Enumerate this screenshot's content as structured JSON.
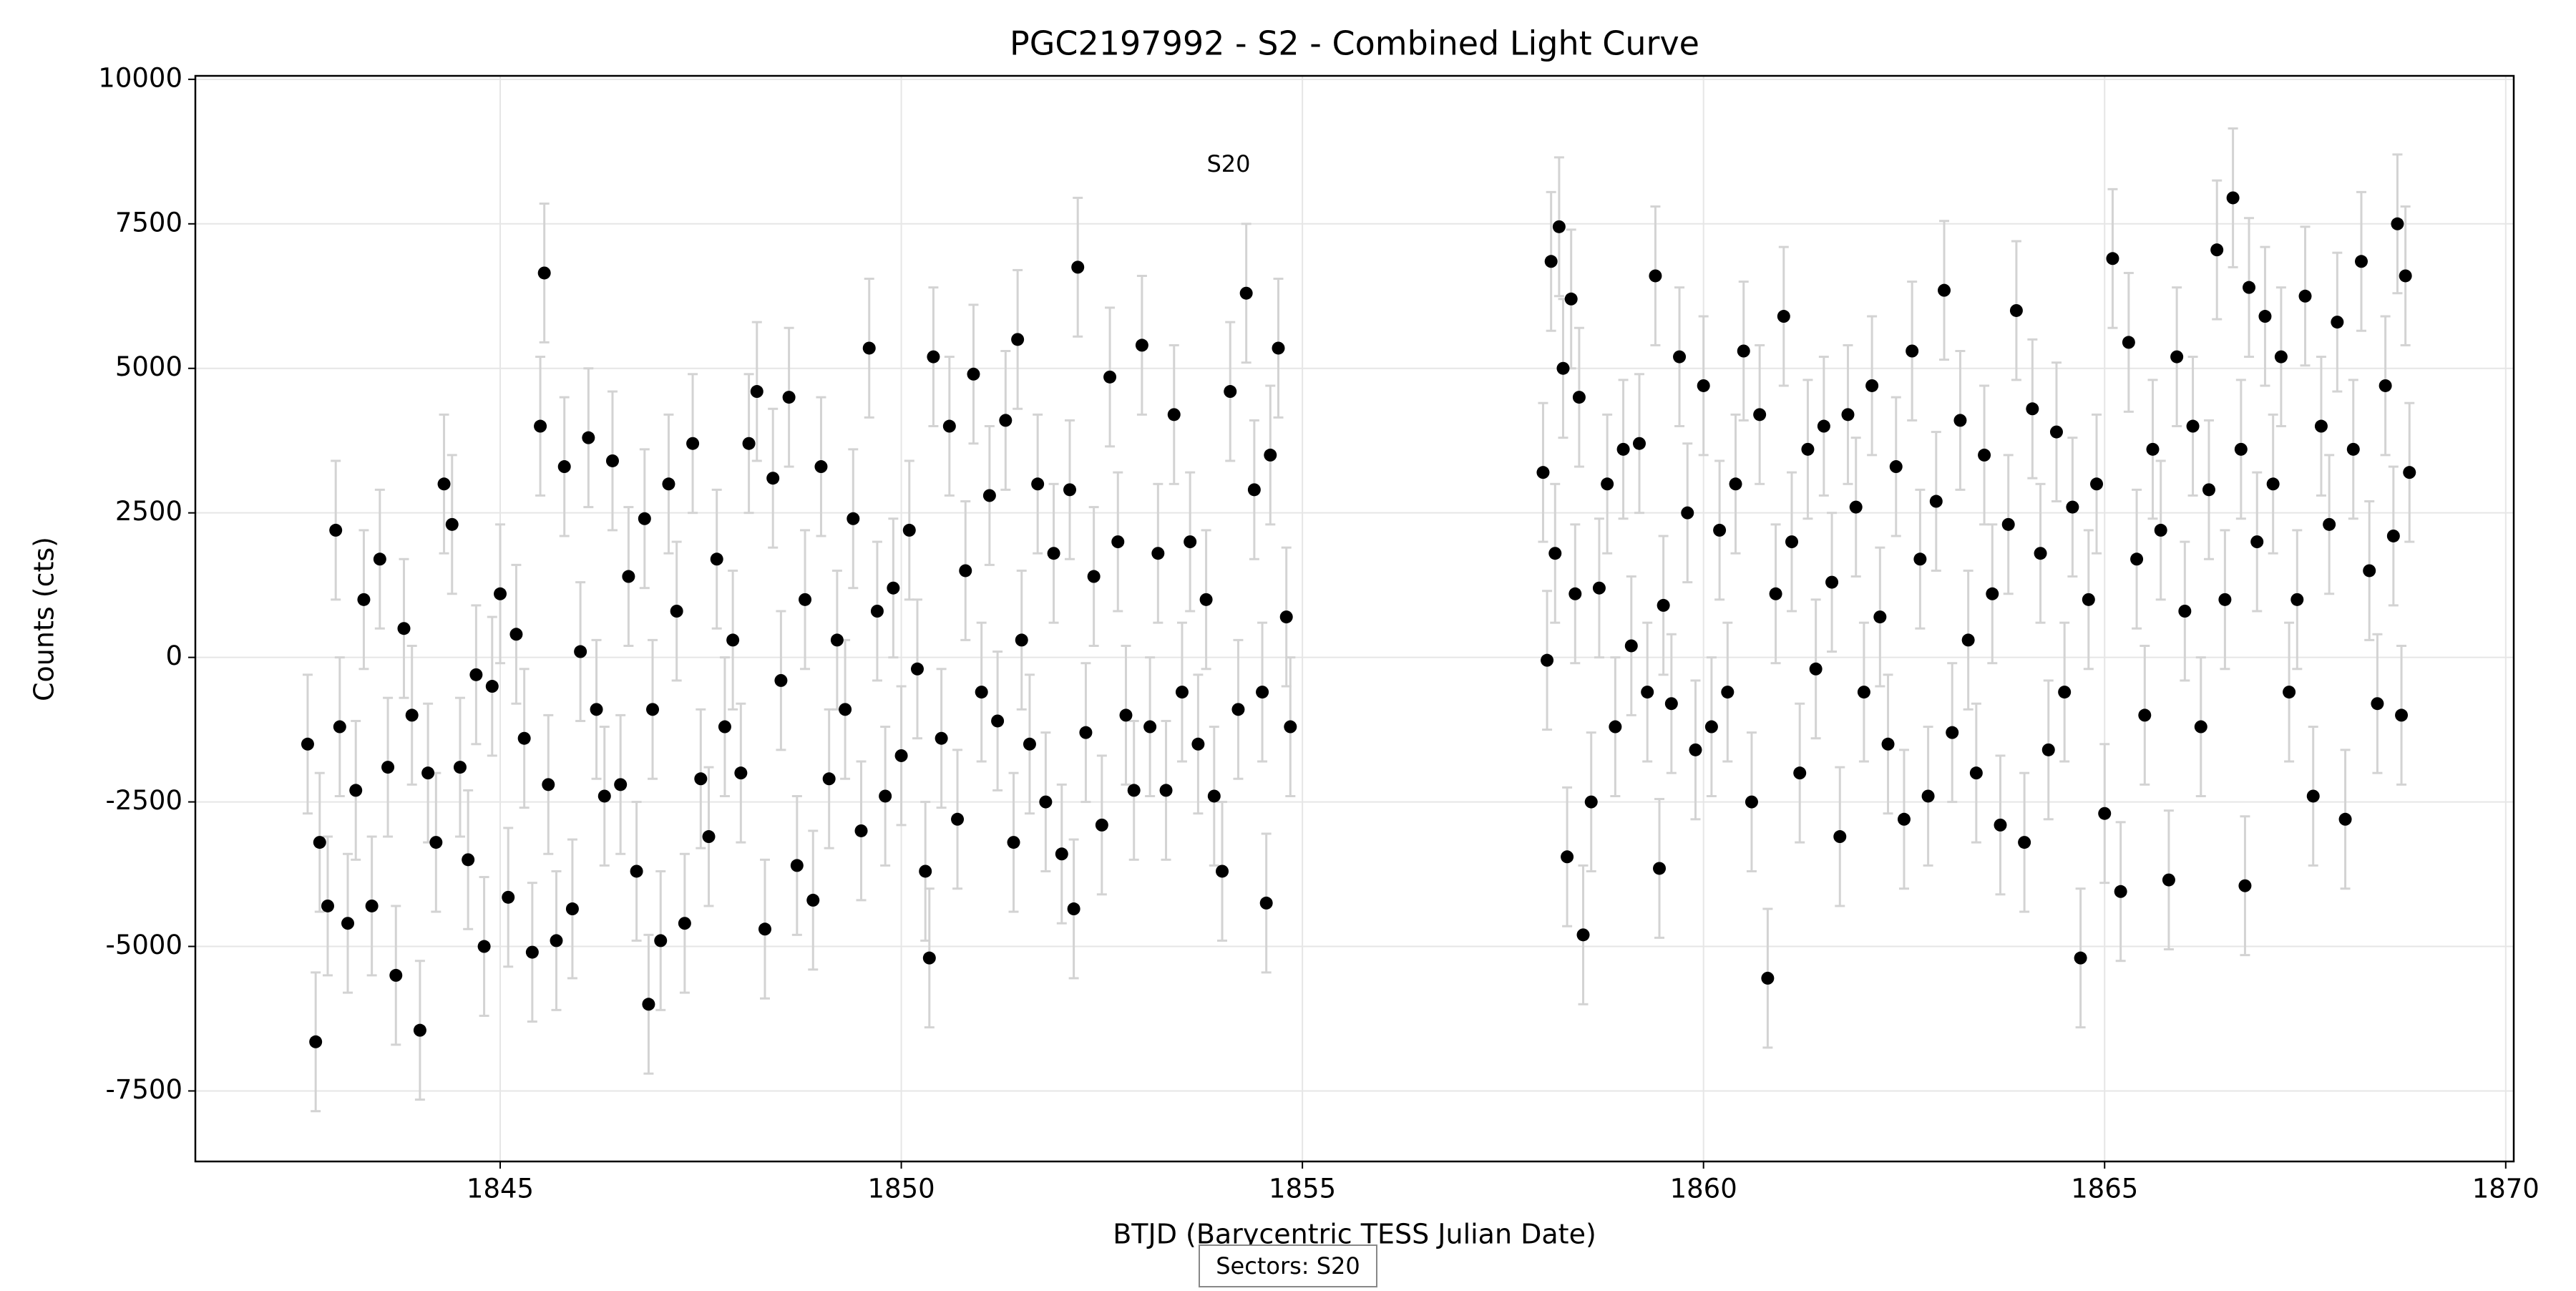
{
  "chart_data": {
    "type": "scatter",
    "title": "PGC2197992 - S2 - Combined Light Curve",
    "xlabel": "BTJD (Barycentric TESS Julian Date)",
    "ylabel": "Counts (cts)",
    "annotation": "S20",
    "footnote": "Sectors: S20",
    "grid": true,
    "xlim": [
      1841.2,
      1870.1
    ],
    "ylim": [
      -8720,
      10060
    ],
    "xticks": [
      1845,
      1850,
      1855,
      1860,
      1865,
      1870
    ],
    "yticks": [
      -7500,
      -5000,
      -2500,
      0,
      2500,
      5000,
      7500,
      10000
    ],
    "x": [
      1842.6,
      1842.7,
      1842.75,
      1842.85,
      1842.95,
      1843.0,
      1843.1,
      1843.2,
      1843.3,
      1843.4,
      1843.5,
      1843.6,
      1843.7,
      1843.8,
      1843.9,
      1844.0,
      1844.1,
      1844.2,
      1844.3,
      1844.4,
      1844.5,
      1844.6,
      1844.7,
      1844.8,
      1844.9,
      1845.0,
      1845.1,
      1845.2,
      1845.3,
      1845.4,
      1845.5,
      1845.55,
      1845.6,
      1845.7,
      1845.8,
      1845.9,
      1846.0,
      1846.1,
      1846.2,
      1846.3,
      1846.4,
      1846.5,
      1846.6,
      1846.7,
      1846.8,
      1846.85,
      1846.9,
      1847.0,
      1847.1,
      1847.2,
      1847.3,
      1847.4,
      1847.5,
      1847.6,
      1847.7,
      1847.8,
      1847.9,
      1848.0,
      1848.1,
      1848.2,
      1848.3,
      1848.4,
      1848.5,
      1848.6,
      1848.7,
      1848.8,
      1848.9,
      1849.0,
      1849.1,
      1849.2,
      1849.3,
      1849.4,
      1849.5,
      1849.6,
      1849.7,
      1849.8,
      1849.9,
      1850.0,
      1850.1,
      1850.2,
      1850.3,
      1850.35,
      1850.4,
      1850.5,
      1850.6,
      1850.7,
      1850.8,
      1850.9,
      1851.0,
      1851.1,
      1851.2,
      1851.3,
      1851.4,
      1851.45,
      1851.5,
      1851.6,
      1851.7,
      1851.8,
      1851.9,
      1852.0,
      1852.1,
      1852.15,
      1852.2,
      1852.3,
      1852.4,
      1852.5,
      1852.6,
      1852.7,
      1852.8,
      1852.9,
      1853.0,
      1853.1,
      1853.2,
      1853.3,
      1853.4,
      1853.5,
      1853.6,
      1853.7,
      1853.8,
      1853.9,
      1854.0,
      1854.1,
      1854.2,
      1854.3,
      1854.4,
      1854.5,
      1854.55,
      1854.6,
      1854.7,
      1854.8,
      1854.85,
      1858.0,
      1858.05,
      1858.1,
      1858.15,
      1858.2,
      1858.25,
      1858.3,
      1858.35,
      1858.4,
      1858.45,
      1858.5,
      1858.6,
      1858.7,
      1858.8,
      1858.9,
      1859.0,
      1859.1,
      1859.2,
      1859.3,
      1859.4,
      1859.45,
      1859.5,
      1859.6,
      1859.7,
      1859.8,
      1859.9,
      1860.0,
      1860.1,
      1860.2,
      1860.3,
      1860.4,
      1860.5,
      1860.6,
      1860.7,
      1860.8,
      1860.9,
      1861.0,
      1861.1,
      1861.2,
      1861.3,
      1861.4,
      1861.5,
      1861.6,
      1861.7,
      1861.8,
      1861.9,
      1862.0,
      1862.1,
      1862.2,
      1862.3,
      1862.4,
      1862.5,
      1862.6,
      1862.7,
      1862.8,
      1862.9,
      1863.0,
      1863.1,
      1863.2,
      1863.3,
      1863.4,
      1863.5,
      1863.6,
      1863.7,
      1863.8,
      1863.9,
      1864.0,
      1864.1,
      1864.2,
      1864.3,
      1864.4,
      1864.5,
      1864.6,
      1864.7,
      1864.8,
      1864.9,
      1865.0,
      1865.1,
      1865.2,
      1865.3,
      1865.4,
      1865.5,
      1865.6,
      1865.7,
      1865.8,
      1865.9,
      1866.0,
      1866.1,
      1866.2,
      1866.3,
      1866.4,
      1866.5,
      1866.6,
      1866.7,
      1866.75,
      1866.8,
      1866.9,
      1867.0,
      1867.1,
      1867.2,
      1867.3,
      1867.4,
      1867.5,
      1867.6,
      1867.7,
      1867.8,
      1867.9,
      1868.0,
      1868.1,
      1868.2,
      1868.3,
      1868.4,
      1868.5,
      1868.6,
      1868.65,
      1868.7,
      1868.75,
      1868.8
    ],
    "series": [
      {
        "color": "#000000",
        "error_color": "#d3d3d3",
        "yerr": 1200,
        "values": [
          -1500,
          -6650,
          -3200,
          -4300,
          2200,
          -1200,
          -4600,
          -2300,
          1000,
          -4300,
          1700,
          -1900,
          -5500,
          500,
          -1000,
          -6450,
          -2000,
          -3200,
          3000,
          2300,
          -1900,
          -3500,
          -300,
          -5000,
          -500,
          1100,
          -4150,
          400,
          -1400,
          -5100,
          4000,
          6650,
          -2200,
          -4900,
          3300,
          -4350,
          100,
          3800,
          -900,
          -2400,
          3400,
          -2200,
          1400,
          -3700,
          2400,
          -6000,
          -900,
          -4900,
          3000,
          800,
          -4600,
          3700,
          -2100,
          -3100,
          1700,
          -1200,
          300,
          -2000,
          3700,
          4600,
          -4700,
          3100,
          -400,
          4500,
          -3600,
          1000,
          -4200,
          3300,
          -2100,
          300,
          -900,
          2400,
          -3000,
          5350,
          800,
          -2400,
          1200,
          -1700,
          2200,
          -200,
          -3700,
          -5200,
          5200,
          -1400,
          4000,
          -2800,
          1500,
          4900,
          -600,
          2800,
          -1100,
          4100,
          -3200,
          5500,
          300,
          -1500,
          3000,
          -2500,
          1800,
          -3400,
          2900,
          -4350,
          6750,
          -1300,
          1400,
          -2900,
          4850,
          2000,
          -1000,
          -2300,
          5400,
          -1200,
          1800,
          -2300,
          4200,
          -600,
          2000,
          -1500,
          1000,
          -2400,
          -3700,
          4600,
          -900,
          6300,
          2900,
          -600,
          -4250,
          3500,
          5350,
          700,
          -1200,
          3200,
          -50,
          6850,
          1800,
          7450,
          5000,
          -3450,
          6200,
          1100,
          4500,
          -4800,
          -2500,
          1200,
          3000,
          -1200,
          3600,
          200,
          3700,
          -600,
          6600,
          -3650,
          900,
          -800,
          5200,
          2500,
          -1600,
          4700,
          -1200,
          2200,
          -600,
          3000,
          5300,
          -2500,
          4200,
          -5550,
          1100,
          5900,
          2000,
          -2000,
          3600,
          -200,
          4000,
          1300,
          -3100,
          4200,
          2600,
          -600,
          4700,
          700,
          -1500,
          3300,
          -2800,
          5300,
          1700,
          -2400,
          2700,
          6350,
          -1300,
          4100,
          300,
          -2000,
          3500,
          1100,
          -2900,
          2300,
          6000,
          -3200,
          4300,
          1800,
          -1600,
          3900,
          -600,
          2600,
          -5200,
          1000,
          3000,
          -2700,
          6900,
          -4050,
          5450,
          1700,
          -1000,
          3600,
          2200,
          -3850,
          5200,
          800,
          4000,
          -1200,
          2900,
          7050,
          1000,
          7950,
          3600,
          -3950,
          6400,
          2000,
          5900,
          3000,
          5200,
          -600,
          1000,
          6250,
          -2400,
          4000,
          2300,
          5800,
          -2800,
          3600,
          6850,
          1500,
          -800,
          4700,
          2100,
          7500,
          -1000,
          6600,
          3200
        ]
      }
    ]
  }
}
